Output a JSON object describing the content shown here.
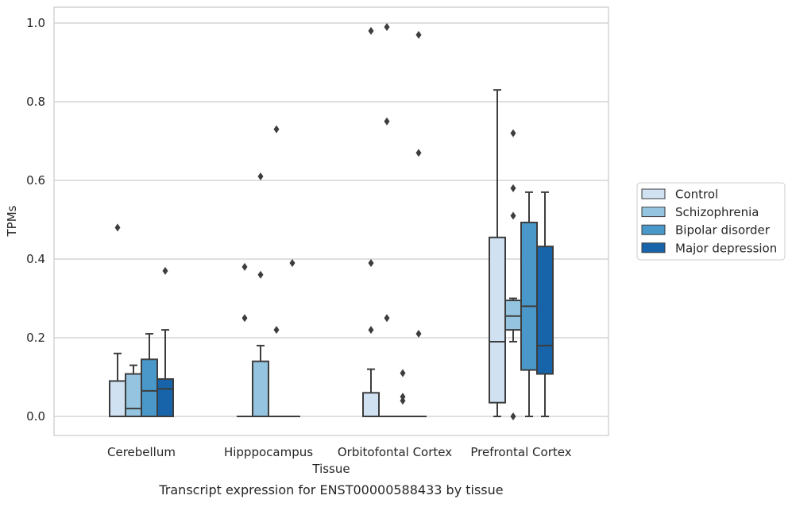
{
  "chart_data": {
    "type": "box",
    "xlabel": "Tissue",
    "ylabel": "TPMs",
    "caption": "Transcript expression for ENST00000588433 by tissue",
    "ylim": [
      -0.05,
      1.04
    ],
    "yticks": [
      0.0,
      0.2,
      0.4,
      0.6,
      0.8,
      1.0
    ],
    "ytick_labels": [
      "0.0",
      "0.2",
      "0.4",
      "0.6",
      "0.8",
      "1.0"
    ],
    "grid": "horizontal",
    "legend_position": "right",
    "categories": [
      "Cerebellum",
      "Hipppocampus",
      "Orbitofontal Cortex",
      "Prefrontal Cortex"
    ],
    "series": [
      {
        "name": "Control",
        "color": "#d0e1f2",
        "boxes": [
          {
            "whisker_low": 0.0,
            "q1": 0.0,
            "median": 0.0,
            "q3": 0.09,
            "whisker_high": 0.16,
            "outliers": [
              0.48
            ]
          },
          {
            "whisker_low": 0.0,
            "q1": 0.0,
            "median": 0.0,
            "q3": 0.0,
            "whisker_high": 0.0,
            "outliers": [
              0.38,
              0.25
            ]
          },
          {
            "whisker_low": 0.0,
            "q1": 0.0,
            "median": 0.0,
            "q3": 0.06,
            "whisker_high": 0.12,
            "outliers": [
              0.98,
              0.39,
              0.22
            ]
          },
          {
            "whisker_low": 0.0,
            "q1": 0.035,
            "median": 0.19,
            "q3": 0.455,
            "whisker_high": 0.83,
            "outliers": []
          }
        ]
      },
      {
        "name": "Schizophrenia",
        "color": "#94c4df",
        "boxes": [
          {
            "whisker_low": 0.0,
            "q1": 0.0,
            "median": 0.02,
            "q3": 0.108,
            "whisker_high": 0.13,
            "outliers": []
          },
          {
            "whisker_low": 0.0,
            "q1": 0.0,
            "median": 0.0,
            "q3": 0.14,
            "whisker_high": 0.18,
            "outliers": [
              0.61,
              0.36
            ]
          },
          {
            "whisker_low": 0.0,
            "q1": 0.0,
            "median": 0.0,
            "q3": 0.0,
            "whisker_high": 0.0,
            "outliers": [
              0.99,
              0.75,
              0.25
            ]
          },
          {
            "whisker_low": 0.19,
            "q1": 0.22,
            "median": 0.255,
            "q3": 0.295,
            "whisker_high": 0.3,
            "outliers": [
              0.72,
              0.58,
              0.51,
              0.0
            ]
          }
        ]
      },
      {
        "name": "Bipolar disorder",
        "color": "#4a98c9",
        "boxes": [
          {
            "whisker_low": 0.0,
            "q1": 0.0,
            "median": 0.065,
            "q3": 0.145,
            "whisker_high": 0.21,
            "outliers": []
          },
          {
            "whisker_low": 0.0,
            "q1": 0.0,
            "median": 0.0,
            "q3": 0.0,
            "whisker_high": 0.0,
            "outliers": [
              0.73,
              0.22
            ]
          },
          {
            "whisker_low": 0.0,
            "q1": 0.0,
            "median": 0.0,
            "q3": 0.0,
            "whisker_high": 0.0,
            "outliers": [
              0.11,
              0.05,
              0.04
            ]
          },
          {
            "whisker_low": 0.0,
            "q1": 0.118,
            "median": 0.28,
            "q3": 0.493,
            "whisker_high": 0.57,
            "outliers": []
          }
        ]
      },
      {
        "name": "Major depression",
        "color": "#1764ab",
        "boxes": [
          {
            "whisker_low": 0.0,
            "q1": 0.0,
            "median": 0.07,
            "q3": 0.095,
            "whisker_high": 0.22,
            "outliers": [
              0.37
            ]
          },
          {
            "whisker_low": 0.0,
            "q1": 0.0,
            "median": 0.0,
            "q3": 0.0,
            "whisker_high": 0.0,
            "outliers": [
              0.39
            ]
          },
          {
            "whisker_low": 0.0,
            "q1": 0.0,
            "median": 0.0,
            "q3": 0.0,
            "whisker_high": 0.0,
            "outliers": [
              0.97,
              0.67,
              0.21
            ]
          },
          {
            "whisker_low": 0.0,
            "q1": 0.108,
            "median": 0.18,
            "q3": 0.432,
            "whisker_high": 0.57,
            "outliers": []
          }
        ]
      }
    ]
  }
}
